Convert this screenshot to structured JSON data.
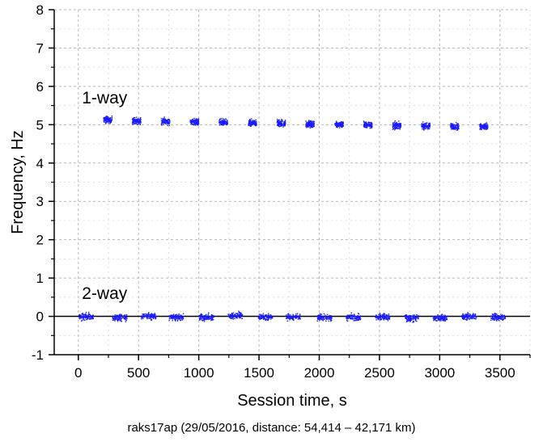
{
  "chart_data": {
    "type": "scatter",
    "xlabel": "Session time, s",
    "ylabel": "Frequency, Hz",
    "xlim": [
      -200,
      3750
    ],
    "ylim": [
      -1,
      8
    ],
    "x_ticks": [
      0,
      500,
      1000,
      1500,
      2000,
      2500,
      3000,
      3500
    ],
    "y_ticks": [
      -1,
      0,
      1,
      2,
      3,
      4,
      5,
      6,
      7,
      8
    ],
    "grid": true,
    "zero_line": true,
    "point_color": "#1a1aff",
    "annotations": [
      {
        "text": "1-way",
        "x": 30,
        "y": 5.55
      },
      {
        "text": "2-way",
        "x": 30,
        "y": 0.45
      }
    ],
    "series": [
      {
        "name": "1-way",
        "x": [
          240,
          480,
          720,
          960,
          1200,
          1440,
          1680,
          1920,
          2160,
          2400,
          2640,
          2880,
          3120,
          3360
        ],
        "y": [
          5.14,
          5.11,
          5.1,
          5.09,
          5.07,
          5.06,
          5.05,
          5.03,
          5.02,
          5.01,
          4.99,
          4.98,
          4.97,
          4.96
        ],
        "x_spread": 35,
        "y_spread": 0.12
      },
      {
        "name": "2-way",
        "x": [
          60,
          340,
          580,
          810,
          1060,
          1300,
          1550,
          1780,
          2040,
          2280,
          2520,
          2760,
          3000,
          3240,
          3480
        ],
        "y": [
          0.0,
          -0.02,
          0.02,
          -0.01,
          -0.01,
          0.03,
          0.0,
          -0.01,
          -0.02,
          -0.02,
          0.0,
          -0.03,
          -0.03,
          0.01,
          -0.01
        ],
        "x_spread": 60,
        "y_spread": 0.12
      }
    ]
  },
  "caption": "raks17ap (29/05/2016, distance: 54,414 – 42,171 km)"
}
